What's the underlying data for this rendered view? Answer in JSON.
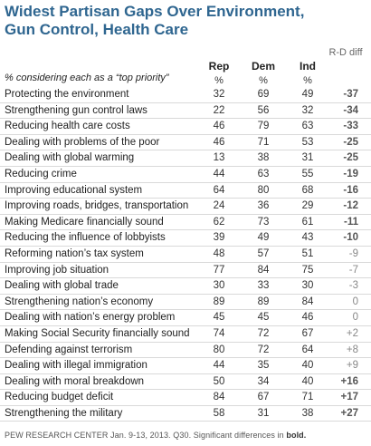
{
  "chart_data": {
    "type": "table",
    "title": "Widest Partisan Gaps Over Environment, Gun Control, Health Care",
    "subtitle": "% considering each as a “top priority”",
    "columns": [
      "Rep",
      "Dem",
      "Ind",
      "R-D diff"
    ],
    "units": [
      "%",
      "%",
      "%"
    ],
    "rows": [
      {
        "label": "Protecting the environment",
        "rep": "32",
        "dem": "69",
        "ind": "49",
        "diff": "-37",
        "sig": true
      },
      {
        "label": "Strengthening gun control laws",
        "rep": "22",
        "dem": "56",
        "ind": "32",
        "diff": "-34",
        "sig": true
      },
      {
        "label": "Reducing health care costs",
        "rep": "46",
        "dem": "79",
        "ind": "63",
        "diff": "-33",
        "sig": true
      },
      {
        "label": "Dealing with problems of the poor",
        "rep": "46",
        "dem": "71",
        "ind": "53",
        "diff": "-25",
        "sig": true
      },
      {
        "label": "Dealing with global warming",
        "rep": "13",
        "dem": "38",
        "ind": "31",
        "diff": "-25",
        "sig": true
      },
      {
        "label": "Reducing crime",
        "rep": "44",
        "dem": "63",
        "ind": "55",
        "diff": "-19",
        "sig": true
      },
      {
        "label": "Improving educational system",
        "rep": "64",
        "dem": "80",
        "ind": "68",
        "diff": "-16",
        "sig": true
      },
      {
        "label": "Improving roads, bridges, transportation",
        "rep": "24",
        "dem": "36",
        "ind": "29",
        "diff": "-12",
        "sig": true
      },
      {
        "label": "Making Medicare financially sound",
        "rep": "62",
        "dem": "73",
        "ind": "61",
        "diff": "-11",
        "sig": true
      },
      {
        "label": "Reducing the influence of lobbyists",
        "rep": "39",
        "dem": "49",
        "ind": "43",
        "diff": "-10",
        "sig": true
      },
      {
        "label": "Reforming nation’s tax system",
        "rep": "48",
        "dem": "57",
        "ind": "51",
        "diff": "-9",
        "sig": false
      },
      {
        "label": "Improving job situation",
        "rep": "77",
        "dem": "84",
        "ind": "75",
        "diff": "-7",
        "sig": false
      },
      {
        "label": "Dealing with global trade",
        "rep": "30",
        "dem": "33",
        "ind": "30",
        "diff": "-3",
        "sig": false
      },
      {
        "label": "Strengthening nation’s economy",
        "rep": "89",
        "dem": "89",
        "ind": "84",
        "diff": "0",
        "sig": false
      },
      {
        "label": "Dealing with nation’s energy problem",
        "rep": "45",
        "dem": "45",
        "ind": "46",
        "diff": "0",
        "sig": false
      },
      {
        "label": "Making Social Security financially sound",
        "rep": "74",
        "dem": "72",
        "ind": "67",
        "diff": "+2",
        "sig": false
      },
      {
        "label": "Defending against terrorism",
        "rep": "80",
        "dem": "72",
        "ind": "64",
        "diff": "+8",
        "sig": false
      },
      {
        "label": "Dealing with illegal immigration",
        "rep": "44",
        "dem": "35",
        "ind": "40",
        "diff": "+9",
        "sig": false
      },
      {
        "label": "Dealing with moral breakdown",
        "rep": "50",
        "dem": "34",
        "ind": "40",
        "diff": "+16",
        "sig": true
      },
      {
        "label": "Reducing budget deficit",
        "rep": "84",
        "dem": "67",
        "ind": "71",
        "diff": "+17",
        "sig": true
      },
      {
        "label": "Strengthening the military",
        "rep": "58",
        "dem": "31",
        "ind": "38",
        "diff": "+27",
        "sig": true
      }
    ]
  },
  "footer": {
    "source": "PEW RESEARCH CENTER Jan. 9-13, 2013. Q30. Significant differences in ",
    "bold": "bold."
  },
  "colors": {
    "title": "#2f6690",
    "diff_sig": "#555555",
    "diff_nonsig": "#888888",
    "rule": "#d9d9d9"
  }
}
